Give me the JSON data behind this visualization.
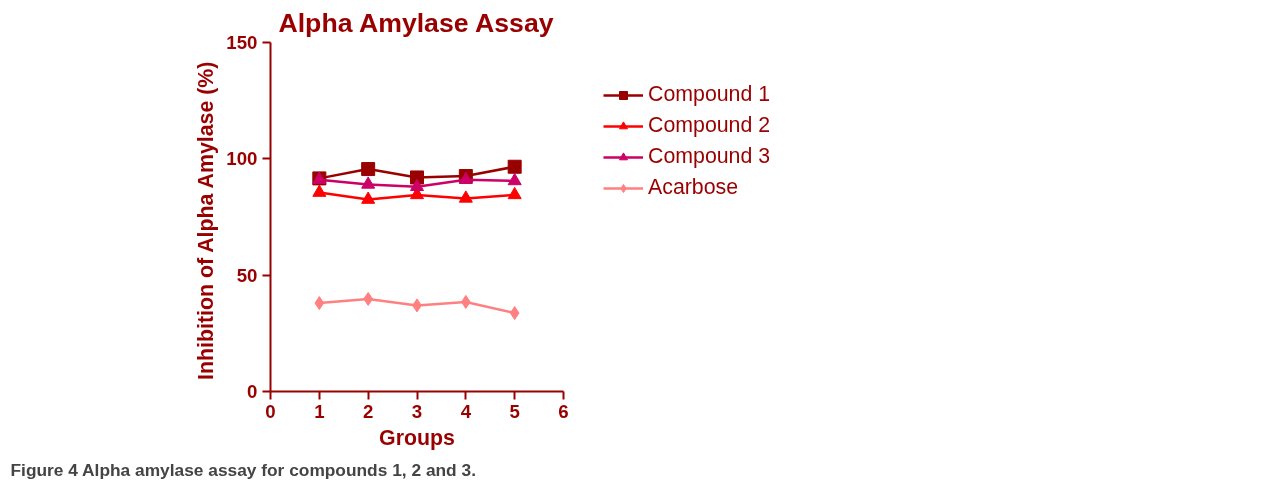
{
  "chart_data": {
    "type": "line",
    "title": "Alpha Amylase Assay",
    "xlabel": "Groups",
    "ylabel": "Inhibition of Alpha  Amylase (%)",
    "x": [
      1,
      2,
      3,
      4,
      5
    ],
    "series": [
      {
        "name": "Compound 1",
        "color": "#990000",
        "marker": "square",
        "values": [
          91.6,
          95.6,
          92,
          92.6,
          96.6
        ]
      },
      {
        "name": "Compound 2",
        "color": "#ff0000",
        "marker": "triangle",
        "values": [
          85.5,
          82.5,
          84.5,
          83,
          84.5
        ]
      },
      {
        "name": "Compound 3",
        "color": "#cc0066",
        "marker": "triangle",
        "values": [
          91,
          89,
          88,
          91,
          90.5
        ]
      },
      {
        "name": "Acarbose",
        "color": "#ff8080",
        "marker": "diamond",
        "values": [
          38,
          39.8,
          37,
          38.5,
          33.7
        ]
      }
    ],
    "xlim": [
      0,
      6
    ],
    "xticks": [
      0,
      1,
      2,
      3,
      4,
      5,
      6
    ],
    "ylim": [
      0,
      150
    ],
    "yticks": [
      0,
      50,
      100,
      150
    ],
    "grid": false,
    "legend": "right",
    "line_style": "solid",
    "annotations": [
      "Figure 4 Alpha amylase assay for compounds 1, 2 and 3."
    ]
  }
}
